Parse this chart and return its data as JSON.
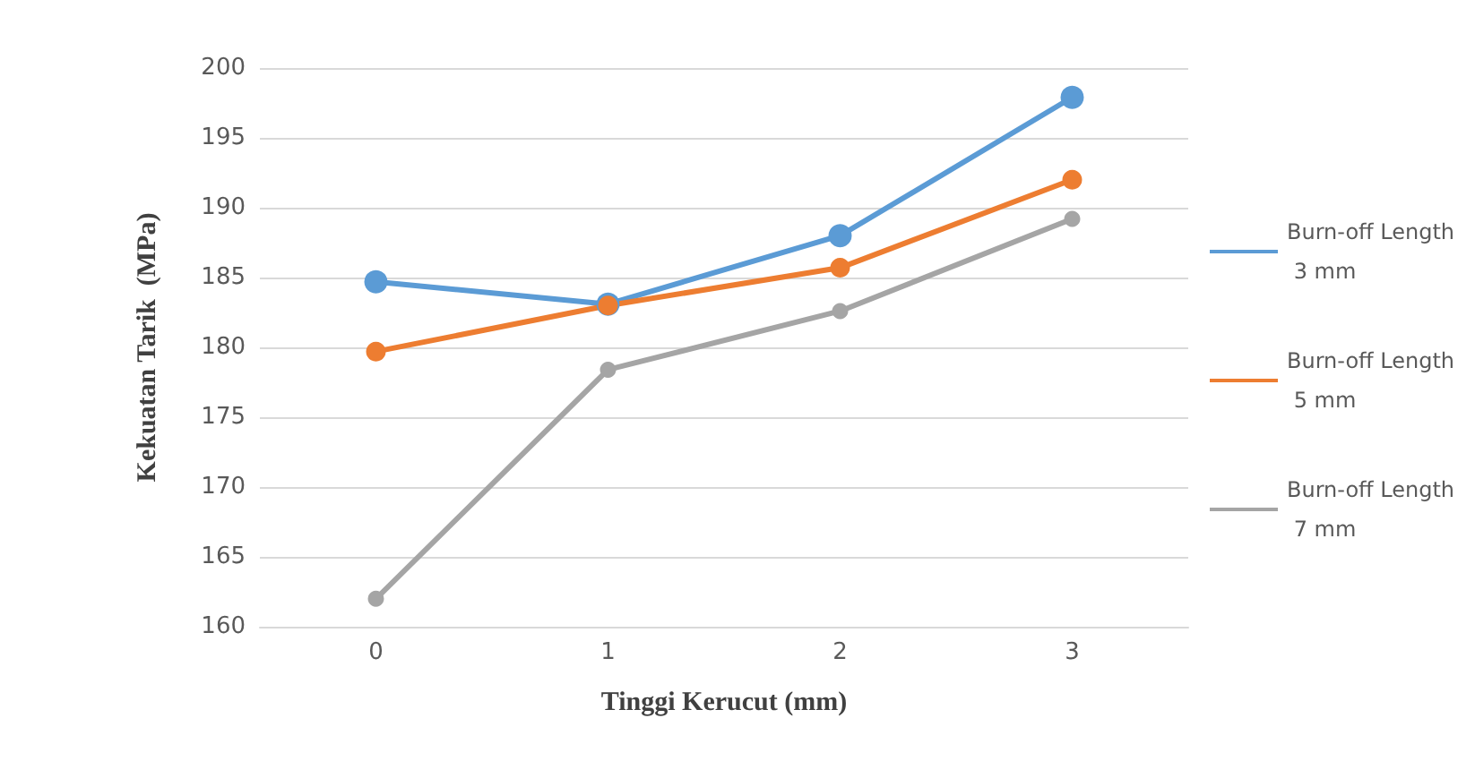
{
  "chart_data": {
    "type": "line",
    "xlabel": "Tinggi Kerucut (mm)",
    "ylabel": "Kekuatan Tarik  (MPa)",
    "categories": [
      "0",
      "1",
      "2",
      "3"
    ],
    "series": [
      {
        "name": "Burn-off Length 3 mm",
        "color": "#5b9bd5",
        "values": [
          184.7,
          183.1,
          188.0,
          197.9
        ]
      },
      {
        "name": "Burn-off Length 5 mm",
        "color": "#ed7d31",
        "values": [
          179.7,
          183.0,
          185.7,
          192.0
        ]
      },
      {
        "name": "Burn-off Length 7 mm",
        "color": "#a5a5a5",
        "values": [
          162.0,
          178.4,
          182.6,
          189.2
        ]
      }
    ],
    "ylim": [
      160,
      200
    ],
    "yticks": [
      160,
      165,
      170,
      175,
      180,
      185,
      190,
      195,
      200
    ],
    "grid": "y",
    "legend": "right",
    "marker": "circle",
    "line_style": "solid"
  }
}
